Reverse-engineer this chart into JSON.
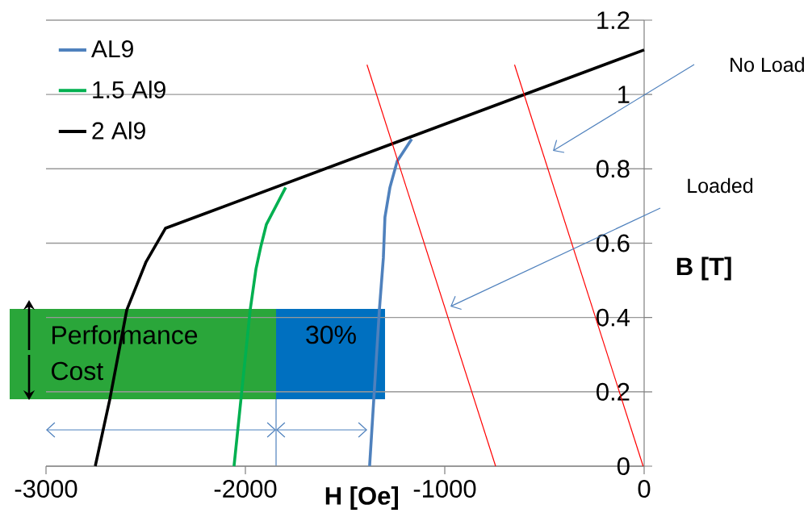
{
  "chart_data": {
    "type": "line",
    "xlabel": "H [Oe]",
    "ylabel": "B [T]",
    "xlim": [
      -3000,
      0
    ],
    "ylim": [
      0,
      1.2
    ],
    "xticks": [
      -3000,
      -2000,
      -1000,
      0
    ],
    "yticks": [
      0,
      0.2,
      0.4,
      0.6,
      0.8,
      1,
      1.2
    ],
    "grid": "y",
    "legend": "top left",
    "marker": "none",
    "line_style": "solid",
    "series": [
      {
        "name": "AL9",
        "color": "#4f81bd",
        "x": [
          -1377,
          -1328,
          -1308,
          -1300,
          -1275,
          -1239,
          -1166
        ],
        "values": [
          0,
          0.42,
          0.56,
          0.67,
          0.75,
          0.82,
          0.88
        ]
      },
      {
        "name": "1.5 Al9",
        "color": "#00b050",
        "x": [
          -2057,
          -1976,
          -1947,
          -1923,
          -1895,
          -1798
        ],
        "values": [
          0,
          0.42,
          0.53,
          0.59,
          0.65,
          0.75
        ]
      },
      {
        "name": "2 Al9",
        "color": "#000000",
        "x": [
          -2753,
          -2680,
          -2595,
          -2498,
          -2401,
          0
        ],
        "values": [
          0,
          0.18,
          0.42,
          0.55,
          0.64,
          1.12
        ]
      },
      {
        "color": "#ff0000",
        "x": [
          -1390,
          -745
        ],
        "values": [
          1.08,
          0
        ]
      },
      {
        "color": "#ff0000",
        "x": [
          -650,
          -5
        ],
        "values": [
          1.08,
          0
        ]
      }
    ],
    "annotations": [
      "No Load",
      "Loaded",
      "Performance",
      "Cost",
      "30%"
    ]
  }
}
